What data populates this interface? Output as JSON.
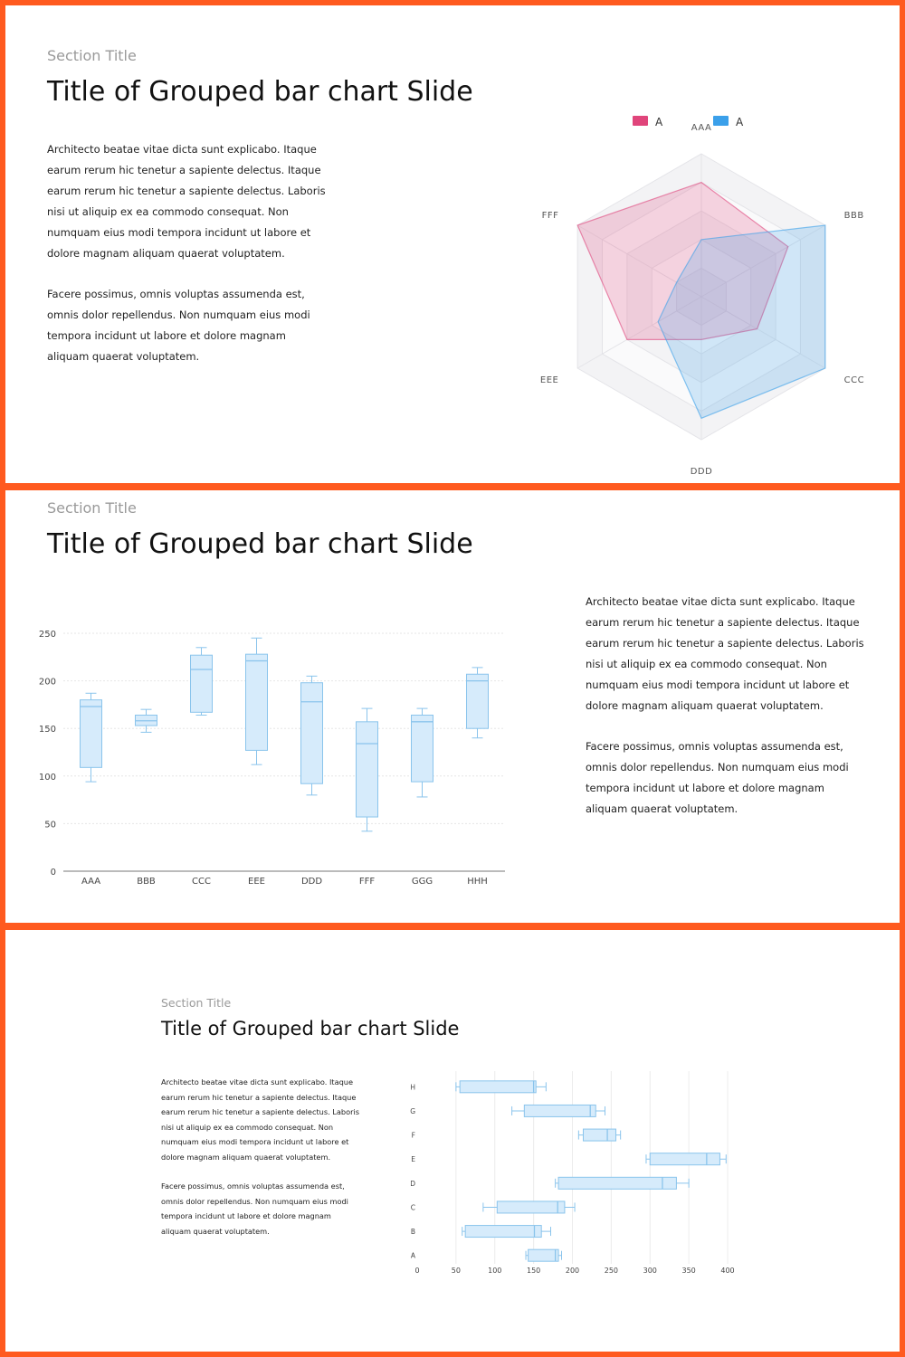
{
  "colors": {
    "frame": "#ff5a1f",
    "pink": "#e0457b",
    "blue": "#3ba0ea",
    "box_fill": "#d6ebfb",
    "box_stroke": "#8ac4ec"
  },
  "slides": [
    {
      "section_title": "Section Title",
      "title": "Title of Grouped bar chart Slide",
      "paragraphs": [
        "Architecto beatae vitae dicta sunt explicabo. Itaque earum rerum hic tenetur a sapiente delectus. Itaque earum rerum hic tenetur a sapiente delectus. Laboris nisi ut aliquip ex ea commodo consequat. Non numquam eius modi tempora incidunt ut labore et dolore magnam aliquam quaerat voluptatem.",
        "Facere possimus, omnis voluptas assumenda est, omnis dolor repellendus. Non numquam eius modi tempora incidunt ut labore et dolore magnam aliquam quaerat voluptatem."
      ]
    },
    {
      "section_title": "Section Title",
      "title": "Title of Grouped bar chart Slide",
      "paragraphs": [
        "Architecto beatae vitae dicta sunt explicabo. Itaque earum rerum hic tenetur a sapiente delectus. Itaque earum rerum hic tenetur a sapiente delectus. Laboris nisi ut aliquip ex ea commodo consequat. Non numquam eius modi tempora incidunt ut labore et dolore magnam aliquam quaerat voluptatem.",
        "Facere possimus, omnis voluptas assumenda est, omnis dolor repellendus. Non numquam eius modi tempora incidunt ut labore et dolore magnam aliquam quaerat voluptatem."
      ]
    },
    {
      "section_title": "Section Title",
      "title": "Title of Grouped bar chart Slide",
      "paragraphs": [
        "Architecto beatae vitae dicta sunt explicabo. Itaque earum rerum hic tenetur a sapiente delectus. Itaque earum rerum hic tenetur a sapiente delectus. Laboris nisi ut aliquip ex ea commodo consequat. Non numquam eius modi tempora incidunt ut labore et dolore magnam aliquam quaerat voluptatem.",
        "Facere possimus, omnis voluptas assumenda est, omnis dolor repellendus. Non numquam eius modi tempora incidunt ut labore et dolore magnam aliquam quaerat voluptatem."
      ]
    }
  ],
  "chart_data": [
    {
      "type": "radar",
      "axes": [
        "AAA",
        "BBB",
        "CCC",
        "DDD",
        "EEE",
        "FFF"
      ],
      "max": 100,
      "levels": 5,
      "legend_position": "top",
      "series": [
        {
          "name": "A",
          "color": "#e0457b",
          "values": [
            80,
            70,
            45,
            30,
            60,
            100
          ]
        },
        {
          "name": "A",
          "color": "#3ba0ea",
          "values": [
            40,
            100,
            100,
            85,
            35,
            20
          ]
        }
      ]
    },
    {
      "type": "boxplot",
      "orientation": "vertical",
      "categories": [
        "AAA",
        "BBB",
        "CCC",
        "EEE",
        "DDD",
        "FFF",
        "GGG",
        "HHH"
      ],
      "yticks": [
        0,
        50,
        100,
        150,
        200,
        250
      ],
      "ylim": [
        0,
        250
      ],
      "grid": true,
      "series": [
        {
          "whisker_low": 94,
          "q1": 109,
          "median": 173,
          "q3": 180,
          "whisker_high": 187
        },
        {
          "whisker_low": 146,
          "q1": 153,
          "median": 158,
          "q3": 164,
          "whisker_high": 170
        },
        {
          "whisker_low": 164,
          "q1": 167,
          "median": 212,
          "q3": 227,
          "whisker_high": 235
        },
        {
          "whisker_low": 112,
          "q1": 127,
          "median": 221,
          "q3": 228,
          "whisker_high": 245
        },
        {
          "whisker_low": 80,
          "q1": 92,
          "median": 178,
          "q3": 198,
          "whisker_high": 205
        },
        {
          "whisker_low": 42,
          "q1": 57,
          "median": 134,
          "q3": 157,
          "whisker_high": 171
        },
        {
          "whisker_low": 78,
          "q1": 94,
          "median": 157,
          "q3": 164,
          "whisker_high": 171
        },
        {
          "whisker_low": 140,
          "q1": 150,
          "median": 200,
          "q3": 207,
          "whisker_high": 214
        }
      ]
    },
    {
      "type": "boxplot",
      "orientation": "horizontal",
      "categories": [
        "H",
        "G",
        "F",
        "E",
        "D",
        "C",
        "B",
        "A"
      ],
      "xticks": [
        0,
        50,
        100,
        150,
        200,
        250,
        300,
        350,
        400
      ],
      "xlim": [
        0,
        400
      ],
      "grid": true,
      "series": [
        {
          "whisker_low": 50,
          "q1": 55,
          "median": 150,
          "q3": 153,
          "whisker_high": 166
        },
        {
          "whisker_low": 122,
          "q1": 138,
          "median": 223,
          "q3": 230,
          "whisker_high": 242
        },
        {
          "whisker_low": 208,
          "q1": 214,
          "median": 245,
          "q3": 256,
          "whisker_high": 262
        },
        {
          "whisker_low": 295,
          "q1": 300,
          "median": 373,
          "q3": 390,
          "whisker_high": 398
        },
        {
          "whisker_low": 178,
          "q1": 182,
          "median": 316,
          "q3": 334,
          "whisker_high": 350
        },
        {
          "whisker_low": 85,
          "q1": 103,
          "median": 181,
          "q3": 190,
          "whisker_high": 203
        },
        {
          "whisker_low": 58,
          "q1": 62,
          "median": 151,
          "q3": 160,
          "whisker_high": 172
        },
        {
          "whisker_low": 140,
          "q1": 143,
          "median": 178,
          "q3": 182,
          "whisker_high": 186
        }
      ]
    }
  ]
}
